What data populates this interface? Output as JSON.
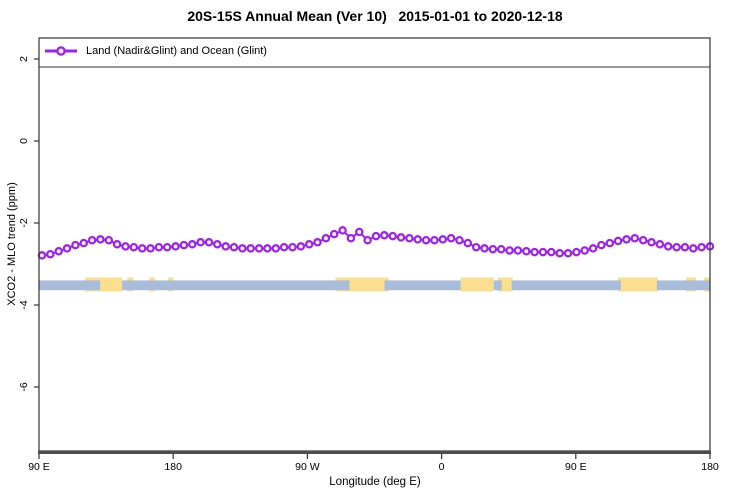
{
  "title": "20S-15S Annual Mean (Ver 10)   2015-01-01 to 2020-12-18",
  "legend": {
    "label": "Land (Nadir&Glint) and Ocean (Glint)"
  },
  "axes": {
    "x_label": "Longitude (deg E)",
    "y_label": "XCO2 - MLO trend (ppm)"
  },
  "colors": {
    "series_purple": "#A020F0",
    "ocean_band_blue": "#A9BDDB",
    "land_band_yellow": "#FBDE8E",
    "frame": "#333333",
    "axis_thick": "#4d4d4d"
  },
  "chart_data": {
    "type": "line",
    "title": "20S-15S Annual Mean (Ver 10)   2015-01-01 to 2020-12-18",
    "xlabel": "Longitude (deg E)",
    "ylabel": "XCO2 - MLO trend (ppm)",
    "xlim": [
      90,
      540
    ],
    "ylim": [
      -7.5,
      2.5
    ],
    "grid": false,
    "legend_position": "top-left-full-width-box",
    "x_ticks": [
      {
        "value": 90,
        "label": "90 E"
      },
      {
        "value": 180,
        "label": "180"
      },
      {
        "value": 270,
        "label": "90 W"
      },
      {
        "value": 360,
        "label": "0"
      },
      {
        "value": 450,
        "label": "90 E"
      },
      {
        "value": 540,
        "label": "180"
      }
    ],
    "y_ticks": [
      {
        "value": 2,
        "label": "2"
      },
      {
        "value": 0,
        "label": "0"
      },
      {
        "value": -2,
        "label": "-2"
      },
      {
        "value": -4,
        "label": "-4"
      },
      {
        "value": -6,
        "label": "-6"
      }
    ],
    "series": [
      {
        "name": "Land (Nadir&Glint) and Ocean (Glint)",
        "color": "#A020F0",
        "marker": "open-circle",
        "x_start": 92,
        "x_step": 5.6,
        "values": [
          -2.79,
          -2.76,
          -2.69,
          -2.62,
          -2.54,
          -2.49,
          -2.42,
          -2.4,
          -2.42,
          -2.52,
          -2.57,
          -2.59,
          -2.62,
          -2.62,
          -2.59,
          -2.59,
          -2.57,
          -2.54,
          -2.52,
          -2.47,
          -2.47,
          -2.52,
          -2.57,
          -2.59,
          -2.62,
          -2.62,
          -2.62,
          -2.62,
          -2.62,
          -2.59,
          -2.59,
          -2.57,
          -2.52,
          -2.47,
          -2.37,
          -2.27,
          -2.18,
          -2.37,
          -2.22,
          -2.42,
          -2.32,
          -2.3,
          -2.32,
          -2.35,
          -2.37,
          -2.4,
          -2.42,
          -2.42,
          -2.4,
          -2.37,
          -2.42,
          -2.49,
          -2.59,
          -2.62,
          -2.64,
          -2.64,
          -2.67,
          -2.67,
          -2.69,
          -2.71,
          -2.71,
          -2.71,
          -2.74,
          -2.74,
          -2.71,
          -2.67,
          -2.62,
          -2.54,
          -2.49,
          -2.44,
          -2.4,
          -2.37,
          -2.42,
          -2.47,
          -2.52,
          -2.57,
          -2.59,
          -2.59,
          -2.62,
          -2.59,
          -2.57
        ]
      }
    ],
    "bands": {
      "land": {
        "name": "land-coverage",
        "color": "#FBDE8E",
        "y_range": [
          -3.67,
          -3.33
        ],
        "segments": [
          [
            120.9,
            145.7
          ],
          [
            149.1,
            153.1
          ],
          [
            163.9,
            167.9
          ],
          [
            176.6,
            180.0
          ],
          [
            288.8,
            324.4
          ],
          [
            372.8,
            394.9
          ],
          [
            397.6,
            407.7
          ],
          [
            478.2,
            505.1
          ],
          [
            523.9,
            530.6
          ],
          [
            536.0,
            540.0
          ]
        ]
      },
      "ocean": {
        "name": "ocean-coverage",
        "color": "#A9BDDB",
        "y_range": [
          -3.64,
          -3.4
        ],
        "segments": [
          [
            90,
            131.0
          ],
          [
            145.7,
            298.2
          ],
          [
            321.7,
            372.8
          ],
          [
            394.9,
            400.3
          ],
          [
            407.0,
            480.2
          ],
          [
            504.4,
            540.0
          ]
        ]
      }
    }
  }
}
